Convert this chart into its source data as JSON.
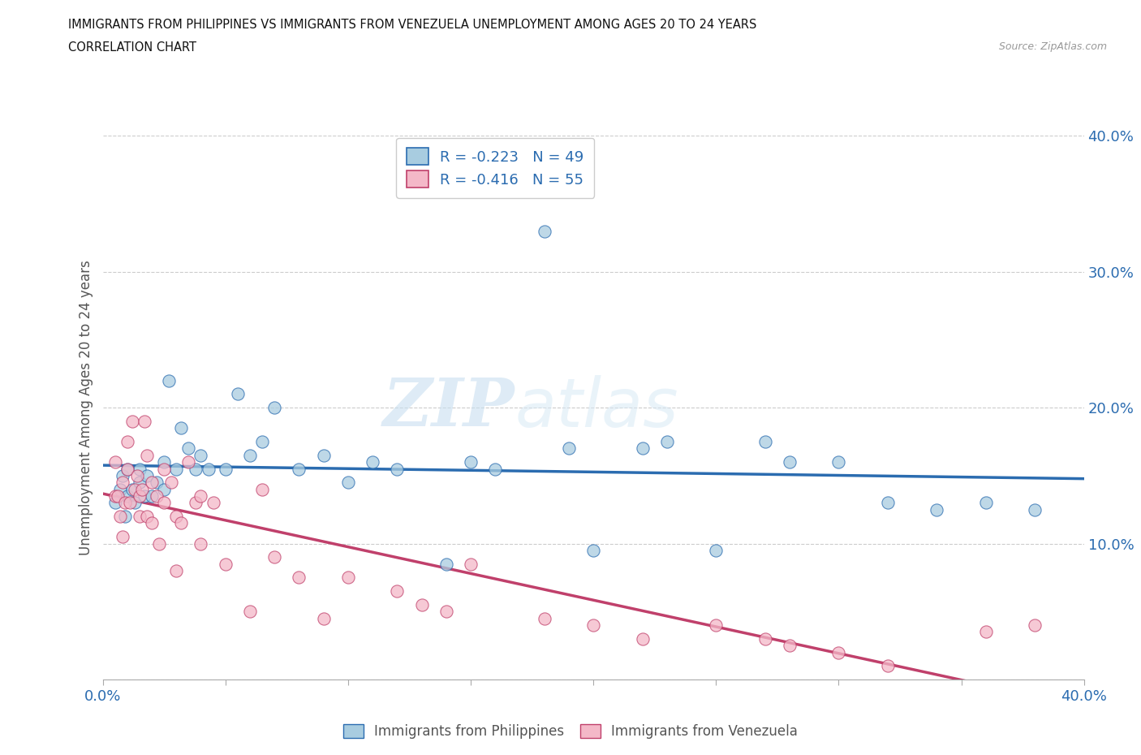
{
  "title_line1": "IMMIGRANTS FROM PHILIPPINES VS IMMIGRANTS FROM VENEZUELA UNEMPLOYMENT AMONG AGES 20 TO 24 YEARS",
  "title_line2": "CORRELATION CHART",
  "source": "Source: ZipAtlas.com",
  "ylabel": "Unemployment Among Ages 20 to 24 years",
  "xlim": [
    0.0,
    0.4
  ],
  "ylim": [
    0.0,
    0.4
  ],
  "blue_color": "#a8cce0",
  "pink_color": "#f4b8c8",
  "blue_line_color": "#2b6cb0",
  "pink_line_color": "#c0406b",
  "legend_r_blue": "R = -0.223",
  "legend_n_blue": "N = 49",
  "legend_r_pink": "R = -0.416",
  "legend_n_pink": "N = 55",
  "legend_label_blue": "Immigrants from Philippines",
  "legend_label_pink": "Immigrants from Venezuela",
  "watermark_zip": "ZIP",
  "watermark_atlas": "atlas",
  "blue_scatter_x": [
    0.005,
    0.007,
    0.008,
    0.009,
    0.01,
    0.01,
    0.012,
    0.013,
    0.015,
    0.015,
    0.017,
    0.018,
    0.02,
    0.022,
    0.025,
    0.025,
    0.027,
    0.03,
    0.032,
    0.035,
    0.038,
    0.04,
    0.043,
    0.05,
    0.055,
    0.06,
    0.065,
    0.07,
    0.08,
    0.09,
    0.1,
    0.11,
    0.12,
    0.14,
    0.15,
    0.16,
    0.18,
    0.19,
    0.2,
    0.22,
    0.23,
    0.25,
    0.27,
    0.28,
    0.3,
    0.32,
    0.34,
    0.36,
    0.38
  ],
  "blue_scatter_y": [
    0.13,
    0.14,
    0.15,
    0.12,
    0.155,
    0.135,
    0.14,
    0.13,
    0.145,
    0.155,
    0.135,
    0.15,
    0.135,
    0.145,
    0.14,
    0.16,
    0.22,
    0.155,
    0.185,
    0.17,
    0.155,
    0.165,
    0.155,
    0.155,
    0.21,
    0.165,
    0.175,
    0.2,
    0.155,
    0.165,
    0.145,
    0.16,
    0.155,
    0.085,
    0.16,
    0.155,
    0.33,
    0.17,
    0.095,
    0.17,
    0.175,
    0.095,
    0.175,
    0.16,
    0.16,
    0.13,
    0.125,
    0.13,
    0.125
  ],
  "pink_scatter_x": [
    0.005,
    0.005,
    0.006,
    0.007,
    0.008,
    0.008,
    0.009,
    0.01,
    0.01,
    0.011,
    0.012,
    0.013,
    0.014,
    0.015,
    0.015,
    0.016,
    0.017,
    0.018,
    0.018,
    0.02,
    0.02,
    0.022,
    0.023,
    0.025,
    0.025,
    0.028,
    0.03,
    0.03,
    0.032,
    0.035,
    0.038,
    0.04,
    0.04,
    0.045,
    0.05,
    0.06,
    0.065,
    0.07,
    0.08,
    0.09,
    0.1,
    0.12,
    0.13,
    0.14,
    0.15,
    0.18,
    0.2,
    0.22,
    0.25,
    0.27,
    0.28,
    0.3,
    0.32,
    0.36,
    0.38
  ],
  "pink_scatter_y": [
    0.135,
    0.16,
    0.135,
    0.12,
    0.145,
    0.105,
    0.13,
    0.155,
    0.175,
    0.13,
    0.19,
    0.14,
    0.15,
    0.135,
    0.12,
    0.14,
    0.19,
    0.12,
    0.165,
    0.145,
    0.115,
    0.135,
    0.1,
    0.155,
    0.13,
    0.145,
    0.12,
    0.08,
    0.115,
    0.16,
    0.13,
    0.135,
    0.1,
    0.13,
    0.085,
    0.05,
    0.14,
    0.09,
    0.075,
    0.045,
    0.075,
    0.065,
    0.055,
    0.05,
    0.085,
    0.045,
    0.04,
    0.03,
    0.04,
    0.03,
    0.025,
    0.02,
    0.01,
    0.035,
    0.04
  ]
}
